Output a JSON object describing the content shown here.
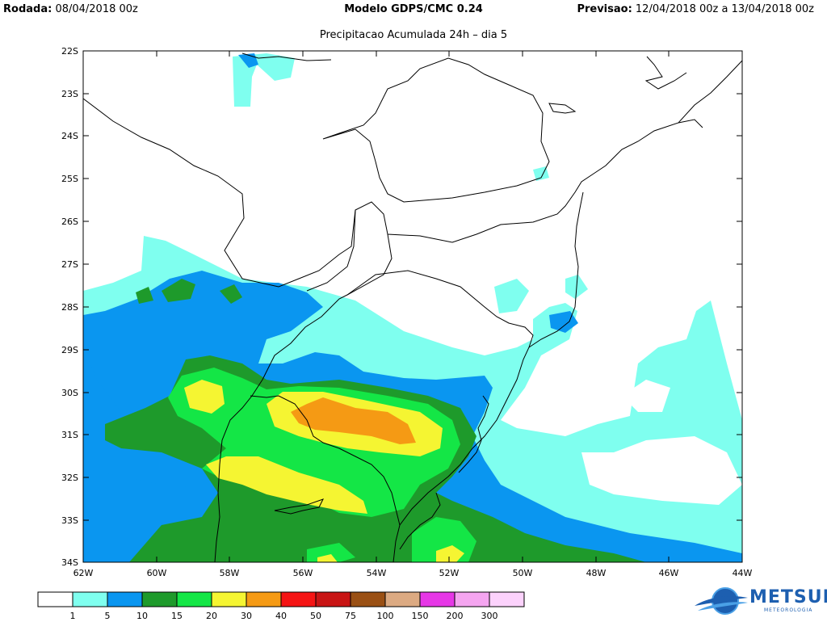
{
  "header": {
    "run_label": "Rodada:",
    "run_value": "08/04/2018 00z",
    "model": "Modelo GDPS/CMC 0.24",
    "forecast_label": "Previsao:",
    "forecast_value": "12/04/2018 00z a 13/04/2018 00z",
    "subtitle": "Precipitacao Acumulada 24h – dia 5"
  },
  "axes": {
    "y_ticks": [
      "22S",
      "23S",
      "24S",
      "25S",
      "26S",
      "27S",
      "28S",
      "29S",
      "30S",
      "31S",
      "32S",
      "33S",
      "34S"
    ],
    "x_ticks": [
      "62W",
      "60W",
      "58W",
      "56W",
      "54W",
      "52W",
      "50W",
      "48W",
      "46W",
      "44W"
    ]
  },
  "legend": {
    "colors": [
      "#ffffff",
      "#7fffef",
      "#0a96f0",
      "#1e9a2b",
      "#14e646",
      "#f5f532",
      "#f59a14",
      "#f51414",
      "#c81414",
      "#9a5014",
      "#dcaa82",
      "#e637e6",
      "#f5a5f0",
      "#fcd2fc"
    ],
    "labels": [
      "1",
      "5",
      "10",
      "15",
      "20",
      "30",
      "40",
      "50",
      "75",
      "100",
      "150",
      "200",
      "300"
    ]
  },
  "logo": {
    "name": "METSUL",
    "tagline": "METEOROLOGIA"
  }
}
